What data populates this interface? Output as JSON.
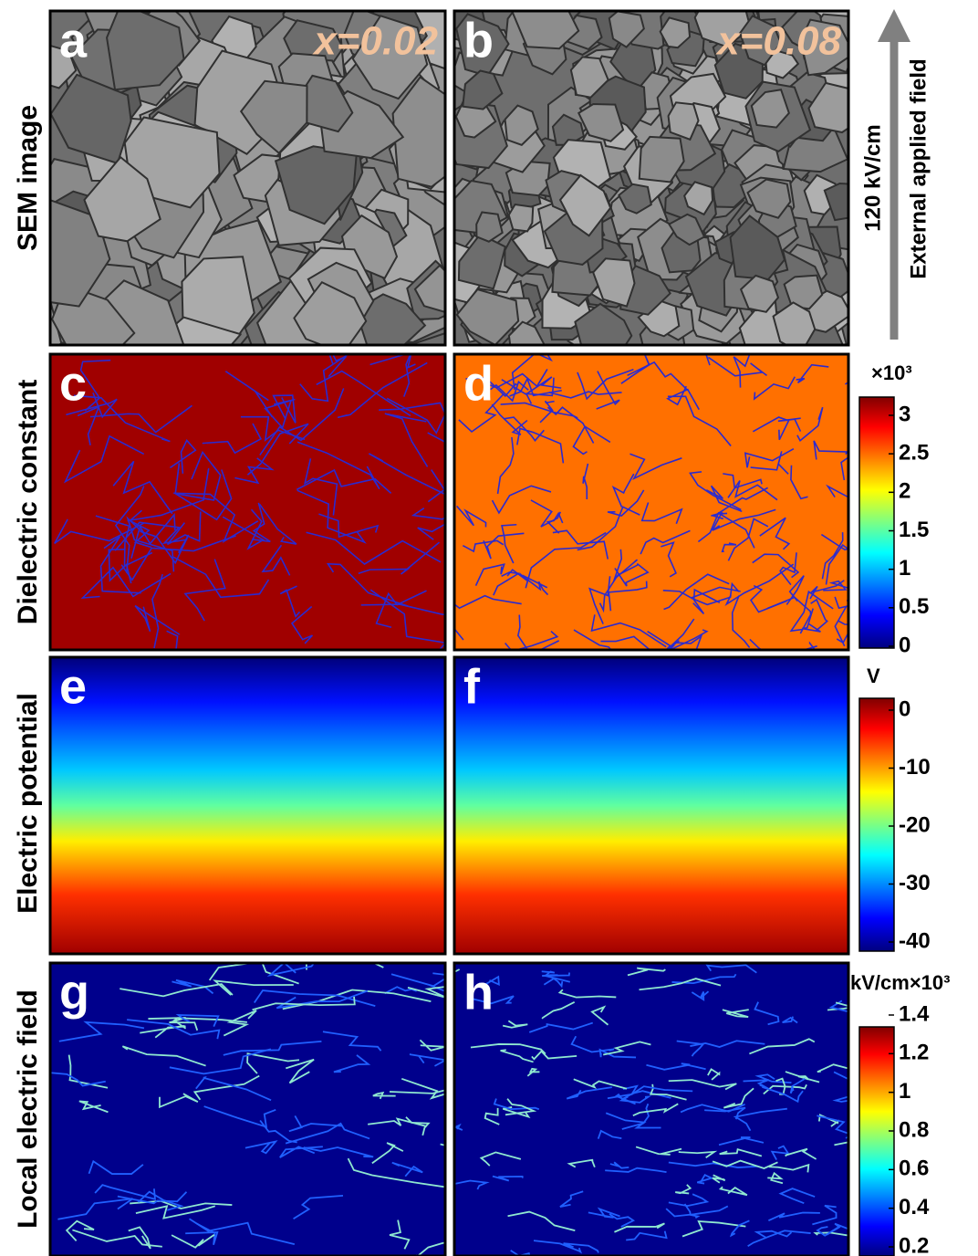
{
  "row_labels": [
    "SEM image",
    "Dielectric constant",
    "Electric potential",
    "Local electric field"
  ],
  "panels": [
    {
      "label": "a",
      "annotation": "x=0.02"
    },
    {
      "label": "b",
      "annotation": "x=0.08"
    },
    {
      "label": "c"
    },
    {
      "label": "d"
    },
    {
      "label": "e"
    },
    {
      "label": "f"
    },
    {
      "label": "g"
    },
    {
      "label": "h"
    }
  ],
  "field_arrow": {
    "magnitude": "120 kV/cm",
    "label": "External applied field"
  },
  "colorbars": [
    {
      "unit": "×10³",
      "ticks": [
        "3",
        "2.5",
        "2",
        "1.5",
        "1",
        "0.5",
        "0"
      ]
    },
    {
      "unit": "V",
      "ticks": [
        "0",
        "-10",
        "-20",
        "-30",
        "-40"
      ]
    },
    {
      "unit": "kV/cm×10³",
      "ticks": [
        "1.4",
        "1.2",
        "1",
        "0.8",
        "0.6",
        "0.4",
        "0.2"
      ]
    }
  ]
}
